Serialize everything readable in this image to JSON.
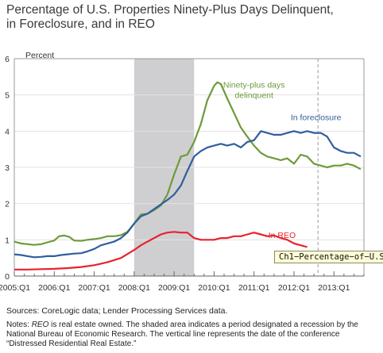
{
  "title": "Percentage of U.S. Properties Ninety-Plus Days Delinquent,\nin Foreclosure, and in REO",
  "sources": "Sources: CoreLogic data; Lender Processing Services data.",
  "notes": {
    "prefix": "Notes: ",
    "term": "REO",
    "text": " is real estate owned. The shaded area indicates a period designated a recession by the National Bureau of Economic Research. The vertical line represents the date of the conference “Distressed Residential Real Estate.”"
  },
  "tooltip": "Ch1−Percentage−of−U.S",
  "chart_data": {
    "type": "line",
    "title": "Percentage of U.S. Properties Ninety-Plus Days Delinquent, in Foreclosure, and in REO",
    "ylabel": "Percent",
    "ylim": [
      0,
      6
    ],
    "yticks": [
      "0",
      "1",
      "2",
      "3",
      "4",
      "5",
      "6"
    ],
    "xlabels": [
      "2005:Q1",
      "2006:Q1",
      "2007:Q1",
      "2008:Q1",
      "2009:Q1",
      "2010:Q1",
      "2011:Q1",
      "2012:Q1",
      "2013:Q1"
    ],
    "xlim": [
      2005.0,
      2013.75
    ],
    "grid": true,
    "recession": [
      2008.0,
      2009.5
    ],
    "vertical_line": 2012.6,
    "series": [
      {
        "name": "Ninety-plus days delinquent",
        "color": "#6e9a3a",
        "label_lines": [
          "Ninety-plus days",
          "delinquent"
        ],
        "label_at": [
          2011.0,
          5.2
        ],
        "points": [
          [
            2005.0,
            0.95
          ],
          [
            2005.17,
            0.9
          ],
          [
            2005.33,
            0.88
          ],
          [
            2005.5,
            0.86
          ],
          [
            2005.67,
            0.88
          ],
          [
            2005.83,
            0.93
          ],
          [
            2006.0,
            0.98
          ],
          [
            2006.12,
            1.1
          ],
          [
            2006.25,
            1.12
          ],
          [
            2006.38,
            1.08
          ],
          [
            2006.5,
            0.98
          ],
          [
            2006.67,
            0.97
          ],
          [
            2006.83,
            1.0
          ],
          [
            2007.0,
            1.02
          ],
          [
            2007.17,
            1.05
          ],
          [
            2007.33,
            1.1
          ],
          [
            2007.5,
            1.1
          ],
          [
            2007.67,
            1.13
          ],
          [
            2007.83,
            1.22
          ],
          [
            2008.0,
            1.45
          ],
          [
            2008.17,
            1.7
          ],
          [
            2008.33,
            1.72
          ],
          [
            2008.5,
            1.82
          ],
          [
            2008.67,
            1.95
          ],
          [
            2008.83,
            2.25
          ],
          [
            2009.0,
            2.8
          ],
          [
            2009.17,
            3.3
          ],
          [
            2009.33,
            3.35
          ],
          [
            2009.5,
            3.7
          ],
          [
            2009.67,
            4.2
          ],
          [
            2009.83,
            4.85
          ],
          [
            2010.0,
            5.25
          ],
          [
            2010.08,
            5.35
          ],
          [
            2010.17,
            5.3
          ],
          [
            2010.33,
            4.9
          ],
          [
            2010.5,
            4.5
          ],
          [
            2010.67,
            4.1
          ],
          [
            2010.83,
            3.85
          ],
          [
            2011.0,
            3.6
          ],
          [
            2011.17,
            3.4
          ],
          [
            2011.33,
            3.3
          ],
          [
            2011.5,
            3.25
          ],
          [
            2011.67,
            3.2
          ],
          [
            2011.83,
            3.25
          ],
          [
            2012.0,
            3.1
          ],
          [
            2012.17,
            3.35
          ],
          [
            2012.33,
            3.3
          ],
          [
            2012.5,
            3.1
          ],
          [
            2012.67,
            3.05
          ],
          [
            2012.83,
            3.0
          ],
          [
            2013.0,
            3.05
          ],
          [
            2013.17,
            3.05
          ],
          [
            2013.33,
            3.1
          ],
          [
            2013.5,
            3.05
          ],
          [
            2013.67,
            2.95
          ]
        ]
      },
      {
        "name": "In foreclosure",
        "color": "#2f5e9e",
        "label_lines": [
          "In foreclosure"
        ],
        "label_at": [
          2012.55,
          4.3
        ],
        "points": [
          [
            2005.0,
            0.6
          ],
          [
            2005.17,
            0.58
          ],
          [
            2005.33,
            0.55
          ],
          [
            2005.5,
            0.52
          ],
          [
            2005.67,
            0.53
          ],
          [
            2005.83,
            0.55
          ],
          [
            2006.0,
            0.55
          ],
          [
            2006.17,
            0.58
          ],
          [
            2006.33,
            0.6
          ],
          [
            2006.5,
            0.62
          ],
          [
            2006.67,
            0.63
          ],
          [
            2006.83,
            0.68
          ],
          [
            2007.0,
            0.75
          ],
          [
            2007.17,
            0.85
          ],
          [
            2007.33,
            0.9
          ],
          [
            2007.5,
            0.95
          ],
          [
            2007.67,
            1.05
          ],
          [
            2007.83,
            1.2
          ],
          [
            2008.0,
            1.45
          ],
          [
            2008.17,
            1.65
          ],
          [
            2008.33,
            1.72
          ],
          [
            2008.5,
            1.85
          ],
          [
            2008.67,
            1.98
          ],
          [
            2008.83,
            2.1
          ],
          [
            2009.0,
            2.25
          ],
          [
            2009.17,
            2.5
          ],
          [
            2009.33,
            2.9
          ],
          [
            2009.5,
            3.3
          ],
          [
            2009.67,
            3.45
          ],
          [
            2009.83,
            3.55
          ],
          [
            2010.0,
            3.6
          ],
          [
            2010.17,
            3.65
          ],
          [
            2010.33,
            3.6
          ],
          [
            2010.5,
            3.65
          ],
          [
            2010.67,
            3.55
          ],
          [
            2010.83,
            3.7
          ],
          [
            2011.0,
            3.75
          ],
          [
            2011.17,
            4.0
          ],
          [
            2011.33,
            3.95
          ],
          [
            2011.5,
            3.9
          ],
          [
            2011.67,
            3.9
          ],
          [
            2011.83,
            3.95
          ],
          [
            2012.0,
            4.0
          ],
          [
            2012.17,
            3.95
          ],
          [
            2012.33,
            4.0
          ],
          [
            2012.5,
            3.95
          ],
          [
            2012.67,
            3.95
          ],
          [
            2012.83,
            3.85
          ],
          [
            2013.0,
            3.55
          ],
          [
            2013.17,
            3.45
          ],
          [
            2013.33,
            3.4
          ],
          [
            2013.5,
            3.4
          ],
          [
            2013.67,
            3.3
          ]
        ]
      },
      {
        "name": "In REO",
        "color": "#e8222e",
        "label_lines": [
          "In REO"
        ],
        "label_at": [
          2011.7,
          1.05
        ],
        "points": [
          [
            2005.0,
            0.18
          ],
          [
            2005.33,
            0.18
          ],
          [
            2005.67,
            0.19
          ],
          [
            2006.0,
            0.2
          ],
          [
            2006.33,
            0.22
          ],
          [
            2006.67,
            0.25
          ],
          [
            2007.0,
            0.3
          ],
          [
            2007.33,
            0.38
          ],
          [
            2007.67,
            0.5
          ],
          [
            2008.0,
            0.72
          ],
          [
            2008.17,
            0.85
          ],
          [
            2008.33,
            0.95
          ],
          [
            2008.5,
            1.05
          ],
          [
            2008.67,
            1.15
          ],
          [
            2008.83,
            1.2
          ],
          [
            2009.0,
            1.22
          ],
          [
            2009.17,
            1.2
          ],
          [
            2009.33,
            1.2
          ],
          [
            2009.5,
            1.05
          ],
          [
            2009.67,
            1.0
          ],
          [
            2009.83,
            1.0
          ],
          [
            2010.0,
            1.0
          ],
          [
            2010.17,
            1.05
          ],
          [
            2010.33,
            1.05
          ],
          [
            2010.5,
            1.1
          ],
          [
            2010.67,
            1.1
          ],
          [
            2010.83,
            1.15
          ],
          [
            2011.0,
            1.2
          ],
          [
            2011.17,
            1.15
          ],
          [
            2011.33,
            1.1
          ],
          [
            2011.5,
            1.12
          ],
          [
            2011.67,
            1.05
          ],
          [
            2011.83,
            1.0
          ],
          [
            2012.0,
            0.9
          ],
          [
            2012.17,
            0.85
          ],
          [
            2012.33,
            0.8
          ]
        ]
      }
    ]
  }
}
